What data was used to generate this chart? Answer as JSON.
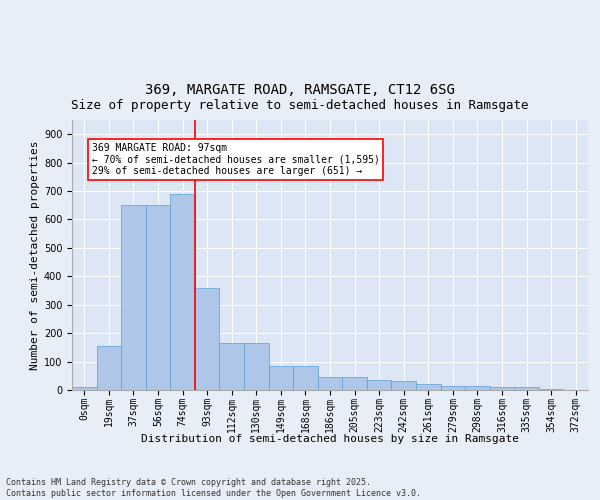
{
  "title_line1": "369, MARGATE ROAD, RAMSGATE, CT12 6SG",
  "title_line2": "Size of property relative to semi-detached houses in Ramsgate",
  "xlabel": "Distribution of semi-detached houses by size in Ramsgate",
  "ylabel": "Number of semi-detached properties",
  "footer": "Contains HM Land Registry data © Crown copyright and database right 2025.\nContains public sector information licensed under the Open Government Licence v3.0.",
  "bin_labels": [
    "0sqm",
    "19sqm",
    "37sqm",
    "56sqm",
    "74sqm",
    "93sqm",
    "112sqm",
    "130sqm",
    "149sqm",
    "168sqm",
    "186sqm",
    "205sqm",
    "223sqm",
    "242sqm",
    "261sqm",
    "279sqm",
    "298sqm",
    "316sqm",
    "335sqm",
    "354sqm",
    "372sqm"
  ],
  "bar_values": [
    10,
    155,
    650,
    650,
    690,
    360,
    165,
    165,
    85,
    85,
    45,
    45,
    35,
    30,
    20,
    15,
    15,
    10,
    10,
    5,
    0
  ],
  "bar_color": "#aec6e8",
  "bar_edge_color": "#5a9fd4",
  "vline_bar_index": 5,
  "vline_color": "red",
  "annotation_title": "369 MARGATE ROAD: 97sqm",
  "annotation_line2": "← 70% of semi-detached houses are smaller (1,595)",
  "annotation_line3": "29% of semi-detached houses are larger (651) →",
  "ylim": [
    0,
    950
  ],
  "yticks": [
    0,
    100,
    200,
    300,
    400,
    500,
    600,
    700,
    800,
    900
  ],
  "bg_color": "#e8eef7",
  "plot_bg_color": "#dce6f5",
  "title_fontsize": 10,
  "subtitle_fontsize": 9,
  "axis_label_fontsize": 8,
  "tick_fontsize": 7,
  "annotation_fontsize": 7,
  "footer_fontsize": 6
}
